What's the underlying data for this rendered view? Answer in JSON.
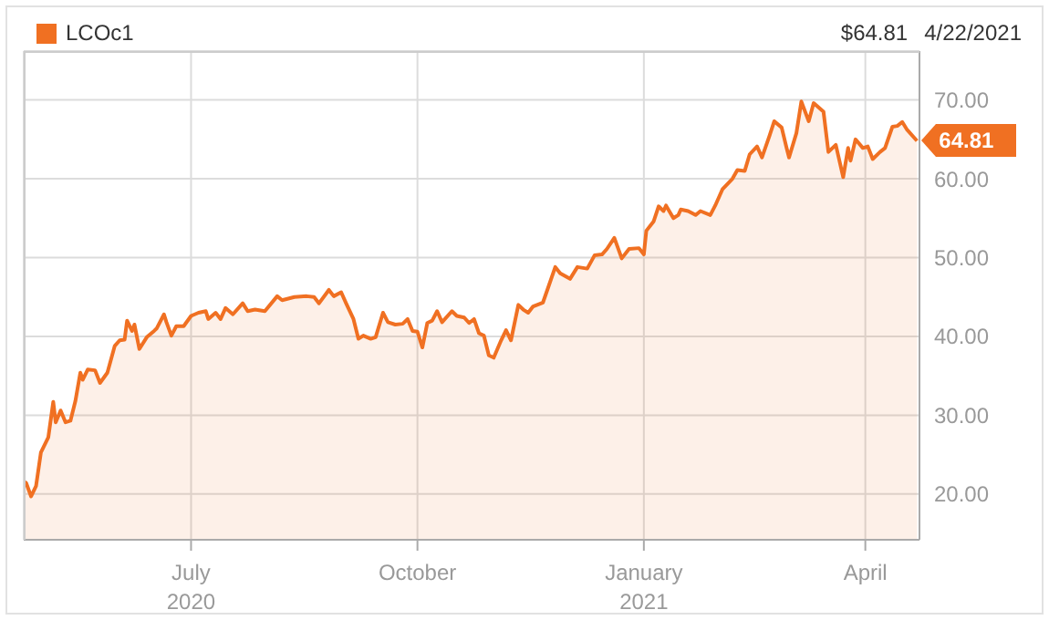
{
  "chart_data": {
    "type": "area",
    "annotations": [
      "$64.81",
      "4/22/2021",
      {
        "text": "64.81",
        "x": "2021-04-22",
        "y": 64.81
      }
    ],
    "x": [
      "2020-04-24",
      "2020-04-25",
      "2020-04-27",
      "2020-04-29",
      "2020-05-01",
      "2020-05-04",
      "2020-05-06",
      "2020-05-07",
      "2020-05-09",
      "2020-05-11",
      "2020-05-13",
      "2020-05-15",
      "2020-05-17",
      "2020-05-18",
      "2020-05-20",
      "2020-05-23",
      "2020-05-25",
      "2020-05-28",
      "2020-05-31",
      "2020-06-02",
      "2020-06-04",
      "2020-06-05",
      "2020-06-07",
      "2020-06-08",
      "2020-06-10",
      "2020-06-13",
      "2020-06-16",
      "2020-06-17",
      "2020-06-20",
      "2020-06-21",
      "2020-06-23",
      "2020-06-25",
      "2020-06-28",
      "2020-07-01",
      "2020-07-04",
      "2020-07-07",
      "2020-07-08",
      "2020-07-11",
      "2020-07-13",
      "2020-07-15",
      "2020-07-18",
      "2020-07-22",
      "2020-07-24",
      "2020-07-27",
      "2020-07-31",
      "2020-08-05",
      "2020-08-07",
      "2020-08-12",
      "2020-08-17",
      "2020-08-20",
      "2020-08-22",
      "2020-08-26",
      "2020-08-28",
      "2020-08-31",
      "2020-09-02",
      "2020-09-05",
      "2020-09-07",
      "2020-09-09",
      "2020-09-12",
      "2020-09-14",
      "2020-09-17",
      "2020-09-19",
      "2020-09-22",
      "2020-09-25",
      "2020-09-27",
      "2020-09-29",
      "2020-10-01",
      "2020-10-03",
      "2020-10-05",
      "2020-10-07",
      "2020-10-09",
      "2020-10-11",
      "2020-10-15",
      "2020-10-17",
      "2020-10-20",
      "2020-10-22",
      "2020-10-24",
      "2020-10-26",
      "2020-10-28",
      "2020-10-30",
      "2020-11-01",
      "2020-11-04",
      "2020-11-06",
      "2020-11-08",
      "2020-11-11",
      "2020-11-13",
      "2020-11-15",
      "2020-11-17",
      "2020-11-21",
      "2020-11-23",
      "2020-11-26",
      "2020-11-28",
      "2020-12-02",
      "2020-12-05",
      "2020-12-09",
      "2020-12-12",
      "2020-12-15",
      "2020-12-17",
      "2020-12-20",
      "2020-12-23",
      "2020-12-26",
      "2020-12-30",
      "2021-01-01",
      "2021-01-02",
      "2021-01-05",
      "2021-01-07",
      "2021-01-09",
      "2021-01-10",
      "2021-01-13",
      "2021-01-15",
      "2021-01-16",
      "2021-01-19",
      "2021-01-22",
      "2021-01-24",
      "2021-01-28",
      "2021-01-30",
      "2021-02-02",
      "2021-02-06",
      "2021-02-08",
      "2021-02-11",
      "2021-02-13",
      "2021-02-16",
      "2021-02-18",
      "2021-02-21",
      "2021-02-23",
      "2021-02-26",
      "2021-02-28",
      "2021-03-01",
      "2021-03-04",
      "2021-03-06",
      "2021-03-09",
      "2021-03-11",
      "2021-03-15",
      "2021-03-17",
      "2021-03-20",
      "2021-03-23",
      "2021-03-25",
      "2021-03-26",
      "2021-03-28",
      "2021-03-31",
      "2021-04-02",
      "2021-04-04",
      "2021-04-07",
      "2021-04-09",
      "2021-04-12",
      "2021-04-14",
      "2021-04-16",
      "2021-04-18",
      "2021-04-22"
    ],
    "series": [
      {
        "name": "LCOc1",
        "color": "#f07022",
        "values": [
          21.6,
          21.4,
          19.7,
          21.0,
          25.3,
          27.2,
          31.7,
          29.1,
          30.6,
          29.1,
          29.3,
          31.8,
          35.4,
          34.5,
          35.8,
          35.7,
          34.1,
          35.4,
          38.8,
          39.5,
          39.6,
          42.0,
          40.7,
          41.5,
          38.4,
          39.9,
          40.7,
          41.0,
          42.8,
          41.8,
          40.1,
          41.3,
          41.3,
          42.6,
          43.0,
          43.2,
          42.2,
          43.0,
          42.2,
          43.6,
          42.8,
          44.2,
          43.2,
          43.4,
          43.2,
          45.1,
          44.6,
          45.0,
          45.1,
          45.0,
          44.2,
          45.9,
          45.1,
          45.6,
          44.2,
          42.2,
          39.7,
          40.1,
          39.7,
          39.9,
          43.0,
          41.8,
          41.5,
          41.6,
          42.2,
          40.7,
          40.6,
          38.6,
          41.7,
          42.0,
          43.2,
          41.8,
          43.2,
          42.6,
          42.4,
          41.7,
          42.2,
          40.4,
          40.1,
          37.6,
          37.3,
          39.5,
          40.8,
          39.5,
          44.0,
          43.4,
          43.0,
          43.8,
          44.3,
          46.1,
          48.8,
          48.0,
          47.3,
          48.8,
          48.6,
          50.3,
          50.4,
          51.1,
          52.5,
          49.9,
          51.1,
          51.2,
          50.4,
          53.4,
          54.6,
          56.5,
          55.9,
          56.6,
          55.0,
          55.4,
          56.1,
          55.9,
          55.4,
          55.9,
          55.4,
          56.6,
          58.7,
          60.0,
          61.1,
          61.0,
          63.1,
          64.1,
          62.7,
          65.4,
          67.3,
          66.5,
          63.9,
          62.7,
          65.8,
          69.8,
          67.3,
          69.6,
          68.5,
          63.4,
          64.3,
          60.2,
          63.9,
          62.3,
          65.0,
          63.9,
          64.1,
          62.5,
          63.4,
          63.9,
          66.6,
          66.7,
          67.2,
          66.2,
          64.81
        ]
      }
    ],
    "xlim": [
      "2020-04-24",
      "2021-04-23"
    ],
    "xticks": [
      {
        "value": "2020-07-01",
        "label": "July 2020"
      },
      {
        "value": "2020-10-01",
        "label": "October"
      },
      {
        "value": "2021-01-01",
        "label": "January 2021"
      },
      {
        "value": "2021-04-01",
        "label": "April"
      }
    ],
    "ylim": [
      14.2,
      76.2
    ],
    "yticks": [
      {
        "value": 20,
        "label": "20.00"
      },
      {
        "value": 30,
        "label": "30.00"
      },
      {
        "value": 40,
        "label": "40.00"
      },
      {
        "value": 50,
        "label": "50.00"
      },
      {
        "value": 60,
        "label": "60.00"
      },
      {
        "value": 70,
        "label": "70.00"
      }
    ],
    "grid": true,
    "legend": "top left"
  }
}
